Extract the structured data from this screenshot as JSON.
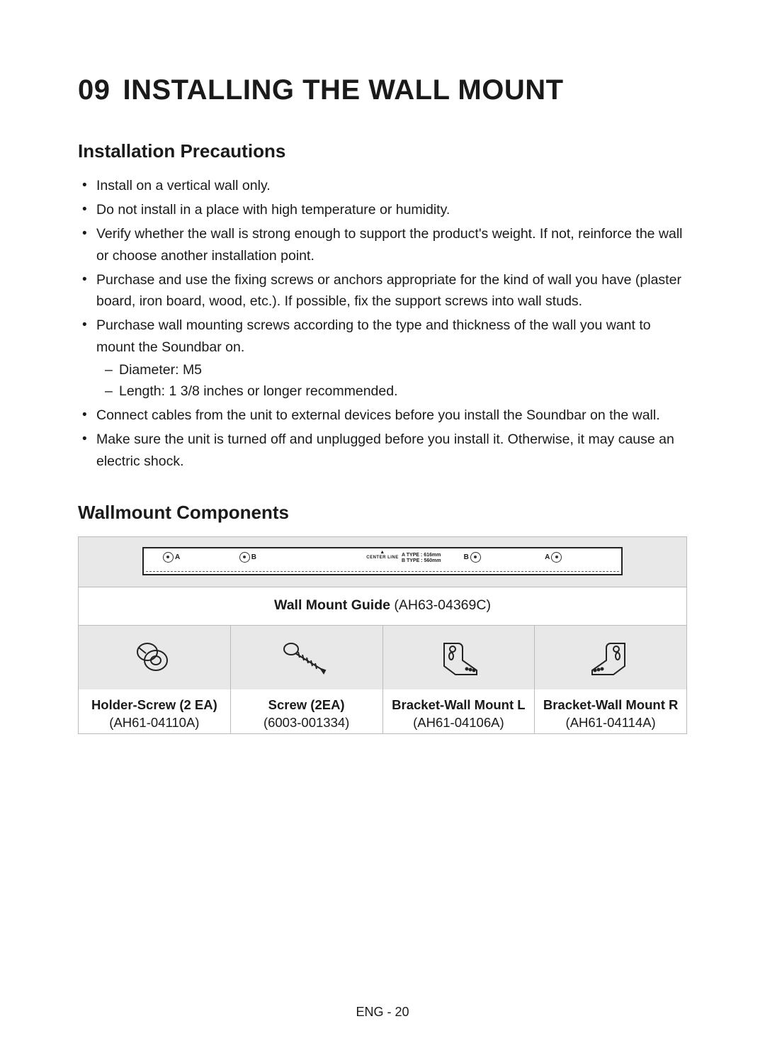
{
  "chapter": {
    "number": "09",
    "title": "INSTALLING THE WALL MOUNT"
  },
  "section1": {
    "title": "Installation Precautions",
    "items": [
      "Install on a vertical wall only.",
      "Do not install in a place with high temperature or humidity.",
      "Verify whether the wall is strong enough to support the product's weight. If not, reinforce the wall or choose another installation point.",
      "Purchase and use the fixing screws or anchors appropriate for the kind of wall you have (plaster board, iron board, wood, etc.). If possible, fix the support screws into wall studs.",
      "Purchase wall mounting screws according to the type and thickness of the wall you want to mount the Soundbar on.",
      "Connect cables from the unit to external devices before you install the Soundbar on the wall.",
      "Make sure the unit is turned off and unplugged before you install it. Otherwise, it may cause an electric shock."
    ],
    "sublist_after_index": 4,
    "subitems": [
      "Diameter: M5",
      "Length: 1 3/8 inches or longer recommended."
    ]
  },
  "section2": {
    "title": "Wallmount Components",
    "guide_strip": {
      "marks": [
        {
          "label": "A",
          "left_pct": 4,
          "label_side": "right"
        },
        {
          "label": "B",
          "left_pct": 20,
          "label_side": "right"
        },
        {
          "label": "B",
          "left_pct": 67,
          "label_side": "left"
        },
        {
          "label": "A",
          "left_pct": 84,
          "label_side": "left"
        }
      ],
      "center_label": "CENTER LINE",
      "type_a": "A TYPE : 616mm",
      "type_b": "B TYPE : 560mm"
    },
    "guide_caption_bold": "Wall Mount Guide",
    "guide_caption_part": "(AH63-04369C)",
    "components": [
      {
        "name": "Holder-Screw (2 EA)",
        "part": "(AH61-04110A)",
        "icon": "holder-screw"
      },
      {
        "name": "Screw (2EA)",
        "part": "(6003-001334)",
        "icon": "screw"
      },
      {
        "name": "Bracket-Wall Mount L",
        "part": "(AH61-04106A)",
        "icon": "bracket-l"
      },
      {
        "name": "Bracket-Wall Mount R",
        "part": "(AH61-04114A)",
        "icon": "bracket-r"
      }
    ]
  },
  "footer": "ENG - 20",
  "colors": {
    "text": "#1a1a1a",
    "panel_bg": "#e8e8e8",
    "border": "#bbbbbb",
    "page_bg": "#ffffff"
  }
}
